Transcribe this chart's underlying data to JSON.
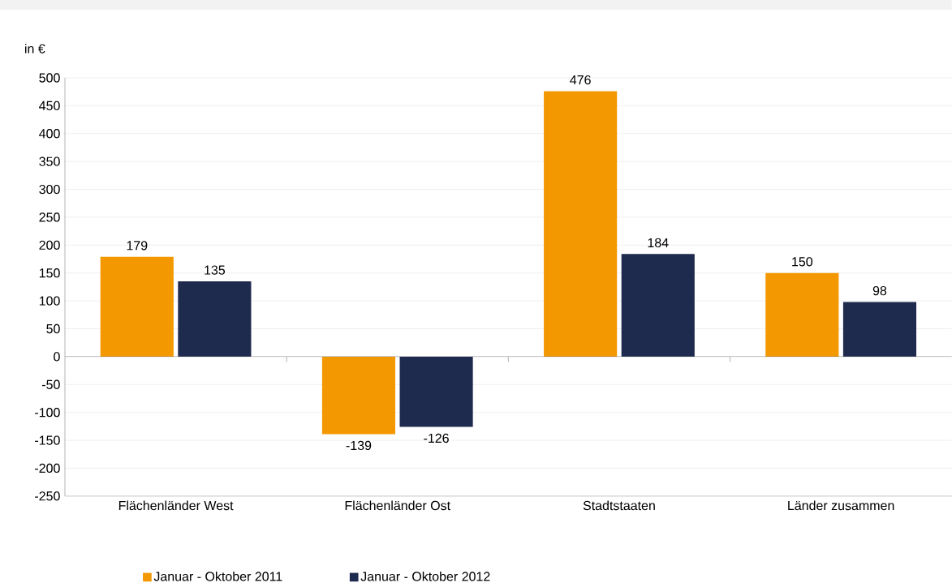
{
  "chart_data": {
    "type": "bar",
    "ylabel": "in €",
    "categories": [
      "Flächenländer West",
      "Flächenländer Ost",
      "Stadtstaaten",
      "Länder zusammen"
    ],
    "series": [
      {
        "name": "Januar - Oktober 2011",
        "color": "#f39800",
        "values": [
          179,
          -139,
          476,
          150
        ]
      },
      {
        "name": "Januar - Oktober 2012",
        "color": "#1f2a4f",
        "values": [
          135,
          -126,
          184,
          98
        ]
      }
    ],
    "ylim": [
      -250,
      500
    ],
    "yticks": [
      -250,
      -200,
      -150,
      -100,
      -50,
      0,
      50,
      100,
      150,
      200,
      250,
      300,
      350,
      400,
      450,
      500
    ],
    "grid": "y",
    "legend": "bottom",
    "data_labels": true
  }
}
